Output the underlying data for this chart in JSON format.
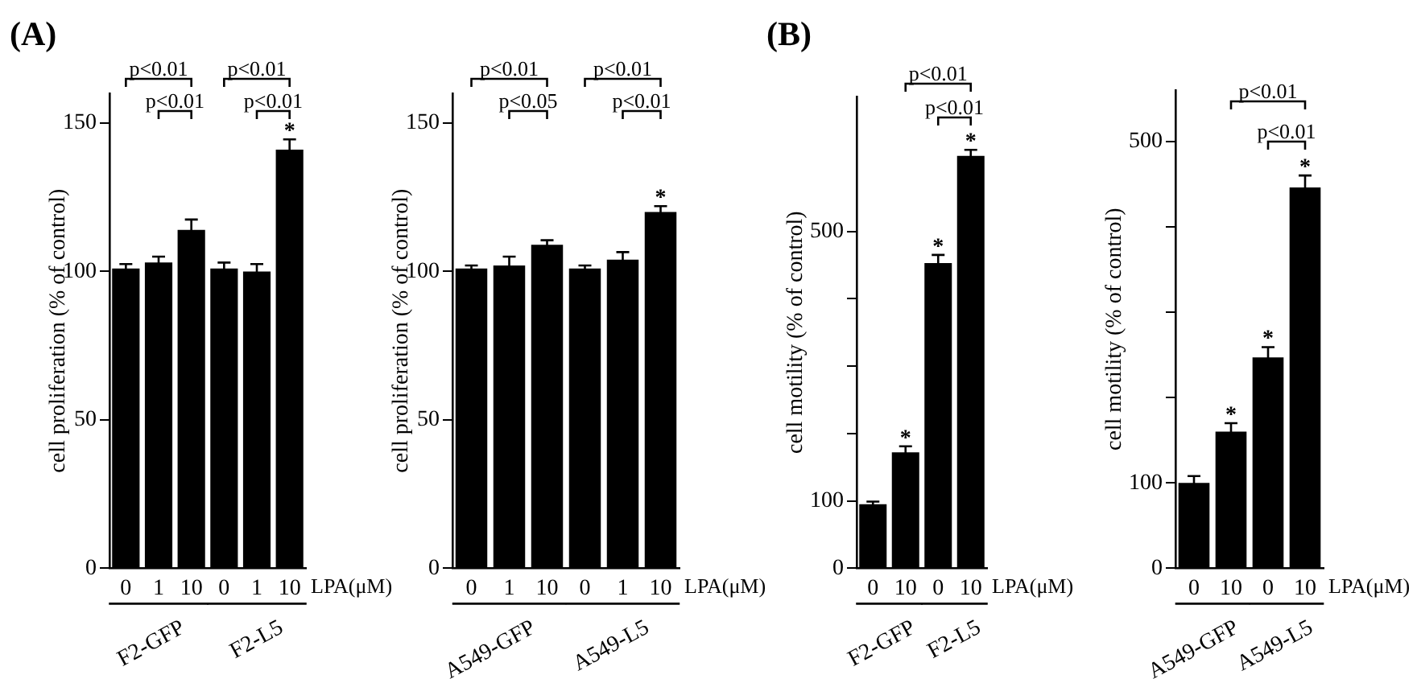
{
  "chart_data": [
    {
      "type": "bar",
      "title": "(A)",
      "ylabel": "cell proliferation (% of control)",
      "xlabel": "LPA(μM)",
      "categories": [
        "0",
        "1",
        "10",
        "0",
        "1",
        "10"
      ],
      "values": [
        101,
        103,
        114,
        101,
        100,
        141
      ],
      "errors": [
        1.5,
        2,
        3.5,
        2,
        2.5,
        3.5
      ],
      "value_labels": [
        null,
        null,
        null,
        null,
        null,
        "*"
      ],
      "color": "#000000",
      "ylim": [
        0,
        160
      ],
      "yticks": [
        0,
        50,
        100,
        150
      ],
      "annotations": [
        "F2-GFP",
        "F2-L5",
        "p<0.01",
        "p<0.01",
        "p<0.01",
        "p<0.01"
      ]
    },
    {
      "type": "bar",
      "ylabel": "cell proliferation (% of control)",
      "xlabel": "LPA(μM)",
      "categories": [
        "0",
        "1",
        "10",
        "0",
        "1",
        "10"
      ],
      "values": [
        101,
        102,
        109,
        101,
        104,
        120
      ],
      "errors": [
        1,
        3,
        1.5,
        1,
        2.5,
        2
      ],
      "value_labels": [
        null,
        null,
        null,
        null,
        null,
        "*"
      ],
      "color": "#000000",
      "ylim": [
        0,
        160
      ],
      "yticks": [
        0,
        50,
        100,
        150
      ],
      "annotations": [
        "A549-GFP",
        "A549-L5",
        "p<0.01",
        "p<0.05",
        "p<0.01",
        "p<0.01"
      ]
    },
    {
      "type": "bar",
      "title": "(B)",
      "ylabel": "cell motility (% of control)",
      "xlabel": "LPA(μM)",
      "categories": [
        "0",
        "10",
        "0",
        "10"
      ],
      "values": [
        95,
        172,
        453,
        612
      ],
      "errors": [
        4,
        9,
        12,
        9
      ],
      "value_labels": [
        null,
        "*",
        "*",
        "*"
      ],
      "color": "#000000",
      "ylim": [
        0,
        700
      ],
      "yticks": [
        0,
        100,
        {
          "value": 200,
          "label": null
        },
        {
          "value": 300,
          "label": null
        },
        {
          "value": 400,
          "label": null
        },
        500
      ],
      "annotations": [
        "F2-GFP",
        "F2-L5",
        "p<0.01",
        "p<0.01"
      ]
    },
    {
      "type": "bar",
      "ylabel": "cell motility (% of control)",
      "xlabel": "LPA(μM)",
      "categories": [
        "0",
        "10",
        "0",
        "10"
      ],
      "values": [
        100,
        160,
        247,
        446
      ],
      "errors": [
        8,
        10,
        12,
        14
      ],
      "value_labels": [
        null,
        "*",
        "*",
        "*"
      ],
      "color": "#000000",
      "ylim": [
        0,
        560
      ],
      "yticks": [
        0,
        100,
        {
          "value": 200,
          "label": null
        },
        {
          "value": 300,
          "label": null
        },
        {
          "value": 400,
          "label": null
        },
        500
      ],
      "annotations": [
        "A549-GFP",
        "A549-L5",
        "p<0.01",
        "p<0.01"
      ]
    }
  ]
}
